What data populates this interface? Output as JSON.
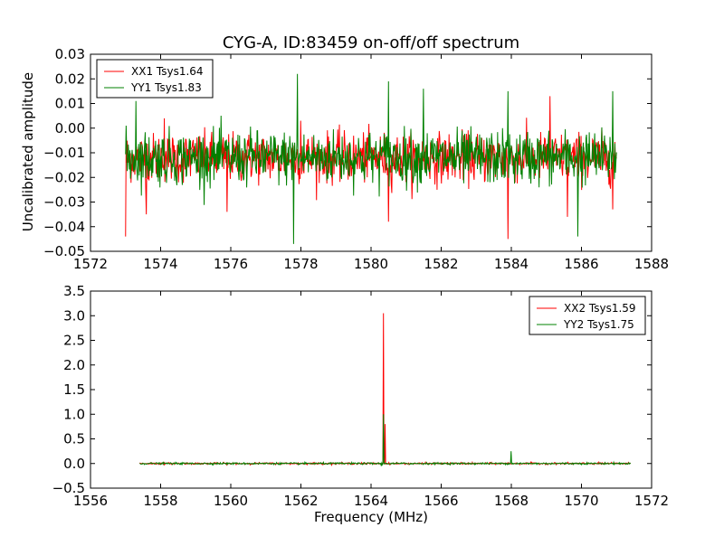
{
  "chart_data": {
    "title": "CYG-A, ID:83459 on-off/off spectrum",
    "ylabel_shared": "Uncalibrated amplitude",
    "xlabel_bottom": "Frequency (MHz)",
    "panels": [
      {
        "type": "line",
        "xlim": [
          1572,
          1588
        ],
        "ylim": [
          -0.05,
          0.03
        ],
        "xticks": [
          "1572",
          "1574",
          "1576",
          "1578",
          "1580",
          "1582",
          "1584",
          "1586",
          "1588"
        ],
        "yticks": [
          "−0.05",
          "−0.04",
          "−0.03",
          "−0.02",
          "−0.01",
          "0.00",
          "0.01",
          "0.02",
          "0.03"
        ],
        "legend_position": "top-left",
        "series": [
          {
            "name": "XX1 Tsys1.64",
            "color": "#ff0000",
            "x_range": [
              1573.0,
              1587.0
            ],
            "mean": -0.012,
            "noise_amplitude": 0.011,
            "spikes": [
              [
                1573.0,
                -0.044
              ],
              [
                1573.6,
                -0.035
              ],
              [
                1574.1,
                0.004
              ],
              [
                1575.9,
                -0.034
              ],
              [
                1578.0,
                0.003
              ],
              [
                1580.5,
                -0.038
              ],
              [
                1583.9,
                -0.045
              ],
              [
                1585.1,
                0.013
              ],
              [
                1585.6,
                -0.036
              ],
              [
                1586.9,
                -0.033
              ]
            ]
          },
          {
            "name": "YY1 Tsys1.83",
            "color": "#008000",
            "x_range": [
              1573.0,
              1587.0
            ],
            "mean": -0.012,
            "noise_amplitude": 0.012,
            "spikes": [
              [
                1573.3,
                0.011
              ],
              [
                1577.8,
                -0.047
              ],
              [
                1577.9,
                0.022
              ],
              [
                1580.5,
                0.019
              ],
              [
                1581.5,
                0.016
              ],
              [
                1583.9,
                0.015
              ],
              [
                1585.9,
                -0.044
              ],
              [
                1586.9,
                0.015
              ]
            ]
          }
        ]
      },
      {
        "type": "line",
        "xlim": [
          1556,
          1572
        ],
        "ylim": [
          -0.5,
          3.5
        ],
        "xticks": [
          "1556",
          "1558",
          "1560",
          "1562",
          "1564",
          "1566",
          "1568",
          "1570",
          "1572"
        ],
        "yticks": [
          "−0.5",
          "0.0",
          "0.5",
          "1.0",
          "1.5",
          "2.0",
          "2.5",
          "3.0",
          "3.5"
        ],
        "legend_position": "top-right",
        "series": [
          {
            "name": "XX2 Tsys1.59",
            "color": "#ff0000",
            "x_range": [
              1557.4,
              1571.4
            ],
            "mean": 0.0,
            "noise_amplitude": 0.02,
            "spikes": [
              [
                1564.35,
                3.05
              ],
              [
                1564.4,
                0.8
              ]
            ]
          },
          {
            "name": "YY2 Tsys1.75",
            "color": "#008000",
            "x_range": [
              1557.4,
              1571.4
            ],
            "mean": 0.0,
            "noise_amplitude": 0.02,
            "spikes": [
              [
                1564.35,
                1.0
              ],
              [
                1568.0,
                0.25
              ],
              [
                1564.3,
                -0.05
              ]
            ]
          }
        ]
      }
    ]
  }
}
